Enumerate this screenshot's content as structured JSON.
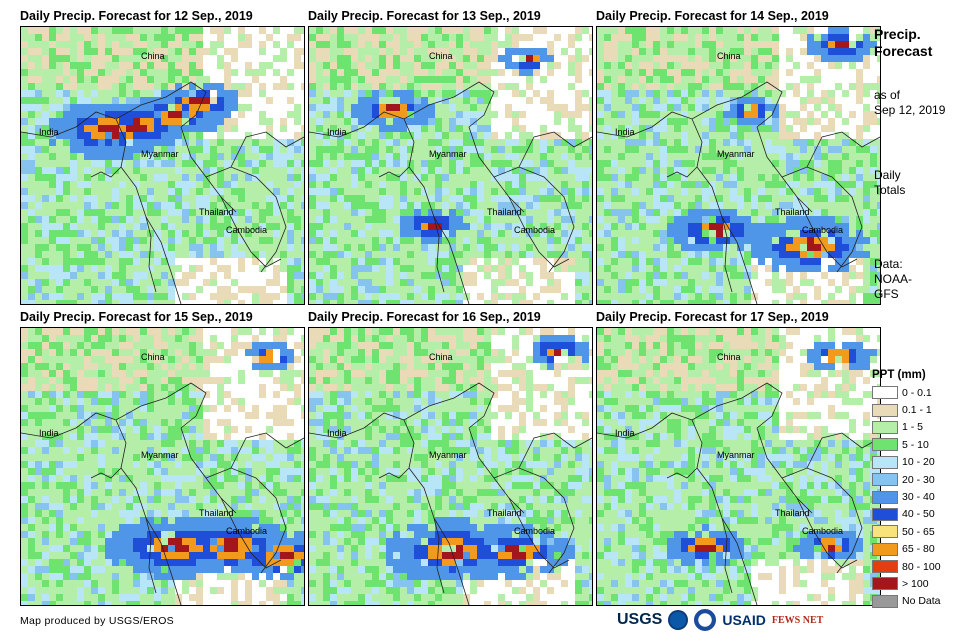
{
  "panels": [
    {
      "title": "Daily Precip. Forecast for 12 Sep., 2019",
      "heavy": [
        [
          85,
          100,
          0.9
        ],
        [
          110,
          95,
          0.8
        ],
        [
          150,
          85,
          0.7
        ],
        [
          175,
          72,
          0.6
        ]
      ],
      "seed": 12
    },
    {
      "title": "Daily Precip. Forecast for 13 Sep., 2019",
      "heavy": [
        [
          80,
          80,
          0.6
        ],
        [
          120,
          195,
          0.5
        ],
        [
          215,
          30,
          0.4
        ]
      ],
      "seed": 13
    },
    {
      "title": "Daily Precip. Forecast for 14 Sep., 2019",
      "heavy": [
        [
          115,
          200,
          0.7
        ],
        [
          210,
          215,
          0.9
        ],
        [
          240,
          15,
          0.5
        ],
        [
          150,
          80,
          0.4
        ]
      ],
      "seed": 14
    },
    {
      "title": "Daily Precip. Forecast for 15 Sep., 2019",
      "heavy": [
        [
          150,
          215,
          1.0
        ],
        [
          205,
          215,
          0.9
        ],
        [
          260,
          225,
          0.8
        ],
        [
          245,
          25,
          0.4
        ]
      ],
      "seed": 15
    },
    {
      "title": "Daily Precip. Forecast for 16 Sep., 2019",
      "heavy": [
        [
          140,
          220,
          1.0
        ],
        [
          205,
          220,
          0.8
        ],
        [
          245,
          20,
          0.5
        ]
      ],
      "seed": 16
    },
    {
      "title": "Daily Precip. Forecast for 17 Sep., 2019",
      "heavy": [
        [
          105,
          215,
          0.6
        ],
        [
          230,
          215,
          0.5
        ],
        [
          240,
          25,
          0.5
        ]
      ],
      "seed": 17
    }
  ],
  "map_labels": {
    "china": "China",
    "india": "India",
    "myanmar": "Myanmar",
    "thailand": "Thailand",
    "cambodia": "Cambodia"
  },
  "side": {
    "heading": "Precip. Forecast",
    "as_of": "as of",
    "date": "Sep 12, 2019",
    "daily": "Daily",
    "totals": "Totals",
    "data_label": "Data:",
    "data_source_1": "NOAA-",
    "data_source_2": "GFS"
  },
  "legend": {
    "title": "PPT (mm)",
    "items": [
      {
        "label": "0 - 0.1",
        "color": "#ffffff"
      },
      {
        "label": "0.1 - 1",
        "color": "#eadbb8"
      },
      {
        "label": "1 - 5",
        "color": "#b4eea8"
      },
      {
        "label": "5 - 10",
        "color": "#6fe36f"
      },
      {
        "label": "10 - 20",
        "color": "#b8e6f6"
      },
      {
        "label": "20 - 30",
        "color": "#86c3ee"
      },
      {
        "label": "30 - 40",
        "color": "#4f96e8"
      },
      {
        "label": "40 - 50",
        "color": "#1f4fd8"
      },
      {
        "label": "50 - 65",
        "color": "#f8e27a"
      },
      {
        "label": "65 - 80",
        "color": "#f29a1e"
      },
      {
        "label": "80 - 100",
        "color": "#e43d10"
      },
      {
        "label": "> 100",
        "color": "#a3161b"
      },
      {
        "label": "No Data",
        "color": "#999999"
      }
    ]
  },
  "footer": "Map produced by USGS/EROS",
  "logos": {
    "usgs": "USGS",
    "usaid": "USAID",
    "fewsnet": "FEWS NET"
  }
}
